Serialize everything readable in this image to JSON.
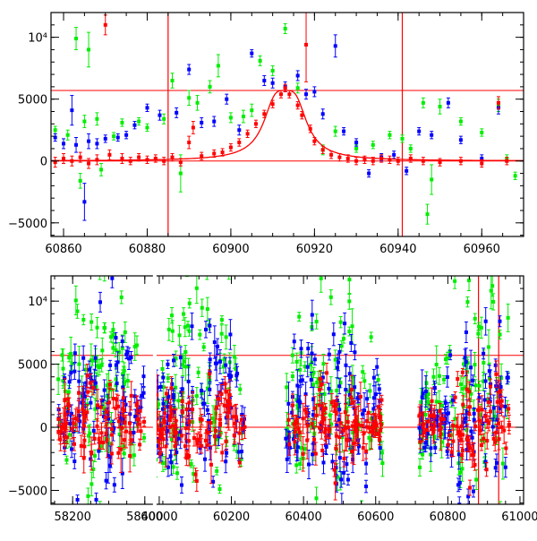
{
  "chart_data": [
    {
      "type": "scatter",
      "panel": "top",
      "title": "",
      "xlabel": "",
      "ylabel": "",
      "xlim": [
        60857,
        60970
      ],
      "ylim": [
        -6100,
        12000
      ],
      "xticks": [
        60860,
        60880,
        60900,
        60920,
        60940,
        60960
      ],
      "xtick_labels": [
        "60860",
        "60880",
        "60900",
        "60920",
        "60940",
        "60960"
      ],
      "yticks": [
        -5000,
        0,
        5000,
        10000
      ],
      "ytick_labels": [
        "−5000",
        "0",
        "5000",
        "10⁴"
      ],
      "reference_lines": {
        "horizontal": [
          0,
          5700
        ],
        "vertical": [
          60885,
          60941
        ],
        "color": "#ff0000"
      },
      "model_curve": {
        "name": "lensing fit",
        "color": "#ff0000",
        "baseline": 0,
        "peak_time": 60913,
        "peak_flux": 5700,
        "width_days": 4.2
      },
      "series": [
        {
          "name": "green band",
          "color": "#00ee00",
          "points": [
            [
              60858,
              2500,
              300
            ],
            [
              60861,
              2100,
              400
            ],
            [
              60863,
              9900,
              900
            ],
            [
              60864,
              -1600,
              600
            ],
            [
              60865,
              3200,
              500
            ],
            [
              60866,
              9000,
              1400
            ],
            [
              60868,
              3400,
              500
            ],
            [
              60869,
              -700,
              500
            ],
            [
              60872,
              2000,
              300
            ],
            [
              60874,
              3100,
              300
            ],
            [
              60878,
              3200,
              300
            ],
            [
              60880,
              2700,
              300
            ],
            [
              60884,
              3400,
              400
            ],
            [
              60886,
              6500,
              600
            ],
            [
              60888,
              -1000,
              1500
            ],
            [
              60890,
              5100,
              600
            ],
            [
              60892,
              4700,
              600
            ],
            [
              60895,
              6000,
              500
            ],
            [
              60897,
              7700,
              900
            ],
            [
              60900,
              3500,
              400
            ],
            [
              60903,
              3600,
              500
            ],
            [
              60905,
              4100,
              500
            ],
            [
              60907,
              8100,
              400
            ],
            [
              60910,
              7300,
              400
            ],
            [
              60913,
              10700,
              400
            ],
            [
              60916,
              5900,
              400
            ],
            [
              60922,
              900,
              400
            ],
            [
              60925,
              2400,
              400
            ],
            [
              60930,
              1000,
              300
            ],
            [
              60934,
              1300,
              300
            ],
            [
              60938,
              2100,
              300
            ],
            [
              60941,
              1800,
              300
            ],
            [
              60943,
              1000,
              300
            ],
            [
              60946,
              4700,
              400
            ],
            [
              60947,
              -4300,
              800
            ],
            [
              60948,
              -1500,
              1200
            ],
            [
              60950,
              4400,
              600
            ],
            [
              60955,
              3200,
              300
            ],
            [
              60960,
              2300,
              300
            ],
            [
              60964,
              4500,
              500
            ],
            [
              60966,
              200,
              300
            ],
            [
              60968,
              -1200,
              300
            ]
          ]
        },
        {
          "name": "blue band",
          "color": "#0000ff",
          "points": [
            [
              60858,
              1900,
              300
            ],
            [
              60860,
              1400,
              400
            ],
            [
              60862,
              4100,
              1200
            ],
            [
              60863,
              1300,
              600
            ],
            [
              60865,
              -3300,
              1500
            ],
            [
              60866,
              1600,
              600
            ],
            [
              60868,
              1400,
              400
            ],
            [
              60870,
              1800,
              300
            ],
            [
              60873,
              1900,
              300
            ],
            [
              60875,
              2100,
              300
            ],
            [
              60877,
              2900,
              300
            ],
            [
              60880,
              4300,
              300
            ],
            [
              60883,
              3700,
              400
            ],
            [
              60887,
              3900,
              400
            ],
            [
              60890,
              7400,
              400
            ],
            [
              60893,
              3100,
              400
            ],
            [
              60896,
              3200,
              400
            ],
            [
              60899,
              5000,
              400
            ],
            [
              60902,
              2500,
              400
            ],
            [
              60905,
              8700,
              300
            ],
            [
              60908,
              6500,
              400
            ],
            [
              60910,
              6300,
              400
            ],
            [
              60913,
              6000,
              400
            ],
            [
              60916,
              6900,
              400
            ],
            [
              60918,
              5400,
              400
            ],
            [
              60920,
              5600,
              400
            ],
            [
              60922,
              3800,
              400
            ],
            [
              60925,
              9300,
              900
            ],
            [
              60927,
              2400,
              300
            ],
            [
              60930,
              1500,
              300
            ],
            [
              60933,
              -1000,
              300
            ],
            [
              60936,
              300,
              300
            ],
            [
              60939,
              500,
              300
            ],
            [
              60942,
              -800,
              300
            ],
            [
              60945,
              2400,
              300
            ],
            [
              60948,
              2100,
              300
            ],
            [
              60952,
              4700,
              400
            ],
            [
              60955,
              1700,
              300
            ],
            [
              60960,
              200,
              300
            ],
            [
              60964,
              4300,
              500
            ]
          ]
        },
        {
          "name": "red band",
          "color": "#ff0000",
          "points": [
            [
              60858,
              -100,
              400
            ],
            [
              60860,
              200,
              400
            ],
            [
              60862,
              0,
              400
            ],
            [
              60864,
              300,
              400
            ],
            [
              60866,
              -200,
              400
            ],
            [
              60868,
              100,
              400
            ],
            [
              60870,
              11000,
              800
            ],
            [
              60871,
              500,
              400
            ],
            [
              60874,
              200,
              400
            ],
            [
              60876,
              0,
              300
            ],
            [
              60878,
              300,
              300
            ],
            [
              60880,
              100,
              300
            ],
            [
              60882,
              200,
              300
            ],
            [
              60884,
              0,
              300
            ],
            [
              60886,
              300,
              300
            ],
            [
              60888,
              -100,
              300
            ],
            [
              60890,
              1500,
              500
            ],
            [
              60891,
              2700,
              500
            ],
            [
              60893,
              400,
              300
            ],
            [
              60896,
              600,
              300
            ],
            [
              60898,
              700,
              300
            ],
            [
              60900,
              1100,
              300
            ],
            [
              60902,
              1500,
              300
            ],
            [
              60904,
              2200,
              300
            ],
            [
              60906,
              3000,
              300
            ],
            [
              60908,
              3800,
              300
            ],
            [
              60910,
              4600,
              300
            ],
            [
              60912,
              5400,
              300
            ],
            [
              60913,
              5900,
              300
            ],
            [
              60914,
              5400,
              300
            ],
            [
              60916,
              4500,
              300
            ],
            [
              60917,
              3700,
              300
            ],
            [
              60918,
              9400,
              3000
            ],
            [
              60919,
              2600,
              300
            ],
            [
              60920,
              1600,
              300
            ],
            [
              60922,
              900,
              300
            ],
            [
              60924,
              500,
              300
            ],
            [
              60926,
              300,
              300
            ],
            [
              60928,
              200,
              300
            ],
            [
              60930,
              0,
              300
            ],
            [
              60932,
              100,
              300
            ],
            [
              60934,
              0,
              300
            ],
            [
              60936,
              200,
              300
            ],
            [
              60938,
              100,
              300
            ],
            [
              60940,
              0,
              300
            ],
            [
              60943,
              200,
              300
            ],
            [
              60946,
              0,
              300
            ],
            [
              60950,
              -100,
              300
            ],
            [
              60955,
              0,
              300
            ],
            [
              60960,
              -200,
              300
            ],
            [
              60964,
              4700,
              500
            ],
            [
              60966,
              0,
              300
            ]
          ]
        }
      ]
    },
    {
      "type": "scatter",
      "panel": "bottom",
      "title": "",
      "xlabel": "",
      "ylabel": "",
      "xlim": [
        58140,
        61010
      ],
      "ylim": [
        -6100,
        12000
      ],
      "xticks": [
        58200,
        58400,
        60000,
        60200,
        60400,
        60600,
        60800,
        61000
      ],
      "xtick_labels": [
        "58200",
        "58400",
        "60000",
        "60200",
        "60400",
        "60600",
        "60800",
        "61000"
      ],
      "yticks": [
        -5000,
        0,
        5000,
        10000
      ],
      "ytick_labels": [
        "−5000",
        "0",
        "5000",
        "10⁴"
      ],
      "axis_break": "compressed gap between the 58000s and 60000s sections",
      "reference_lines": {
        "horizontal": [
          0,
          5700
        ],
        "vertical": [
          60885,
          60941
        ],
        "color": "#ff0000"
      },
      "seasons": [
        {
          "range": [
            58160,
            58400
          ],
          "season_peak_x": 58280,
          "n_points": 170
        },
        {
          "range": [
            59990,
            60240
          ],
          "season_peak_x": 60110,
          "n_points": 180
        },
        {
          "range": [
            60350,
            60620
          ],
          "season_peak_x": 60470,
          "n_points": 190
        },
        {
          "range": [
            60720,
            60970
          ],
          "season_peak_x": 60900,
          "n_points": 170
        }
      ],
      "series": [
        {
          "name": "green band",
          "color": "#00ee00",
          "scatter_sigma": 3800,
          "mean": 2500
        },
        {
          "name": "blue band",
          "color": "#0000ff",
          "scatter_sigma": 2600,
          "mean": 1600
        },
        {
          "name": "red band",
          "color": "#ff0000",
          "scatter_sigma": 1400,
          "mean": 300
        }
      ]
    }
  ]
}
